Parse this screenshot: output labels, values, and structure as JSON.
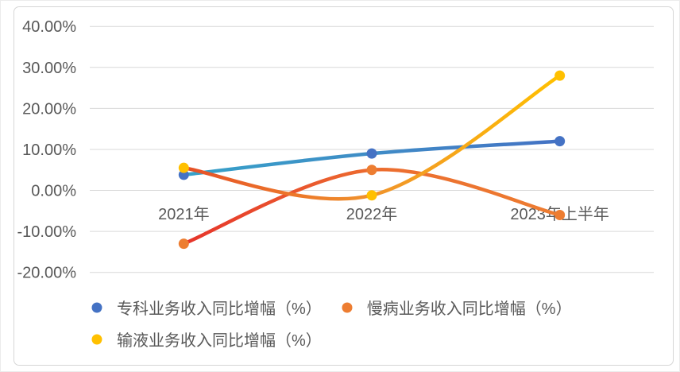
{
  "chart_data": {
    "type": "line",
    "title": "",
    "categories": [
      "2021年",
      "2022年",
      "2023年上半年"
    ],
    "series": [
      {
        "name": "专科业务收入同比增幅（%）",
        "values": [
          3.8,
          9,
          12
        ],
        "marker_color": "#4472C4",
        "line_gradient": [
          "#36A2C9",
          "#3F8CC6",
          "#4472C4"
        ]
      },
      {
        "name": "慢病业务收入同比增幅（%）",
        "values": [
          -13,
          5,
          -6
        ],
        "marker_color": "#ED7D31",
        "line_gradient": [
          "#E6342B",
          "#EC6C2F",
          "#ED7D31"
        ]
      },
      {
        "name": "输液业务收入同比增幅（%）",
        "values": [
          5.5,
          -1.2,
          28
        ],
        "marker_color": "#FFC000",
        "line_gradient": [
          "#E64F27",
          "#F0932C",
          "#FFC000"
        ]
      }
    ],
    "ylim": [
      -20,
      40
    ],
    "ytick_step": 10,
    "ytick_labels": [
      "40.00%",
      "30.00%",
      "20.00%",
      "10.00%",
      "0.00%",
      "-10.00%",
      "-20.00%"
    ],
    "xlabel": "",
    "ylabel": "",
    "grid": true,
    "smooth_lines": true,
    "legend_position": "bottom"
  },
  "colors": {
    "grid": "#D9D9D9",
    "text": "#595959",
    "frame_border": "#D6D6D6",
    "background": "#FFFFFF"
  }
}
